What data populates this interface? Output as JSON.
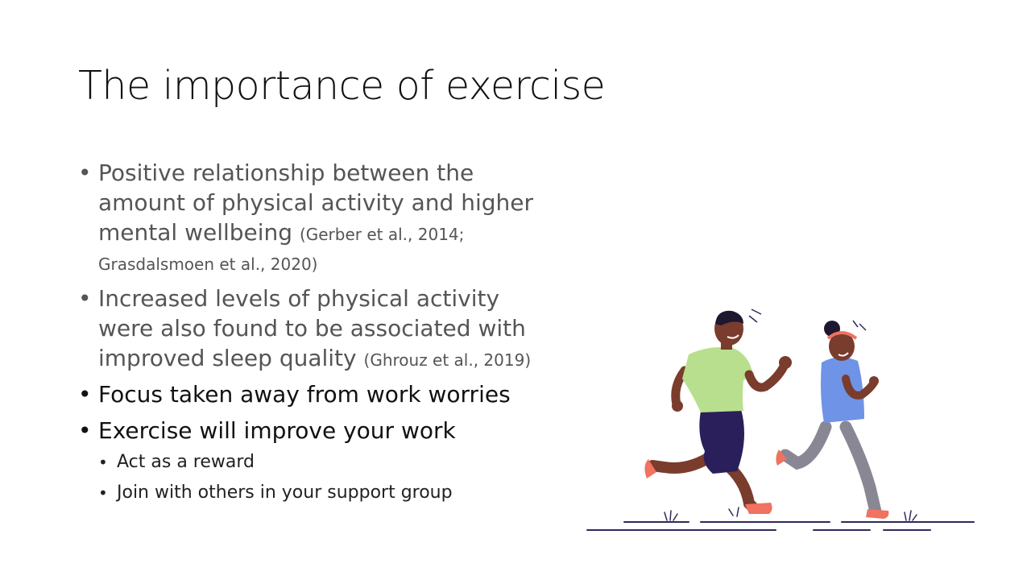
{
  "slide": {
    "title": "The importance of exercise",
    "bullets": [
      {
        "text": "Positive relationship between the amount of physical activity and higher mental wellbeing ",
        "citation": "(Gerber et al., 2014; Grasdalsmoen et al., 2020)"
      },
      {
        "text": "Increased levels of physical activity were also found to be associated with improved sleep quality ",
        "citation": "(Ghrouz et al., 2019)"
      },
      {
        "text": "Focus taken away from work worries"
      },
      {
        "text": "Exercise will improve your work",
        "sub": [
          "Act as a reward",
          "Join with others in your support group"
        ]
      }
    ]
  },
  "colors": {
    "man_shirt": "#b8df8e",
    "man_shorts": "#2a1f5a",
    "woman_top": "#6f93e6",
    "woman_leggings": "#8a8794",
    "shoes": "#f0725f",
    "skin": "#7a3c2c",
    "ground": "#2e2a5a"
  }
}
